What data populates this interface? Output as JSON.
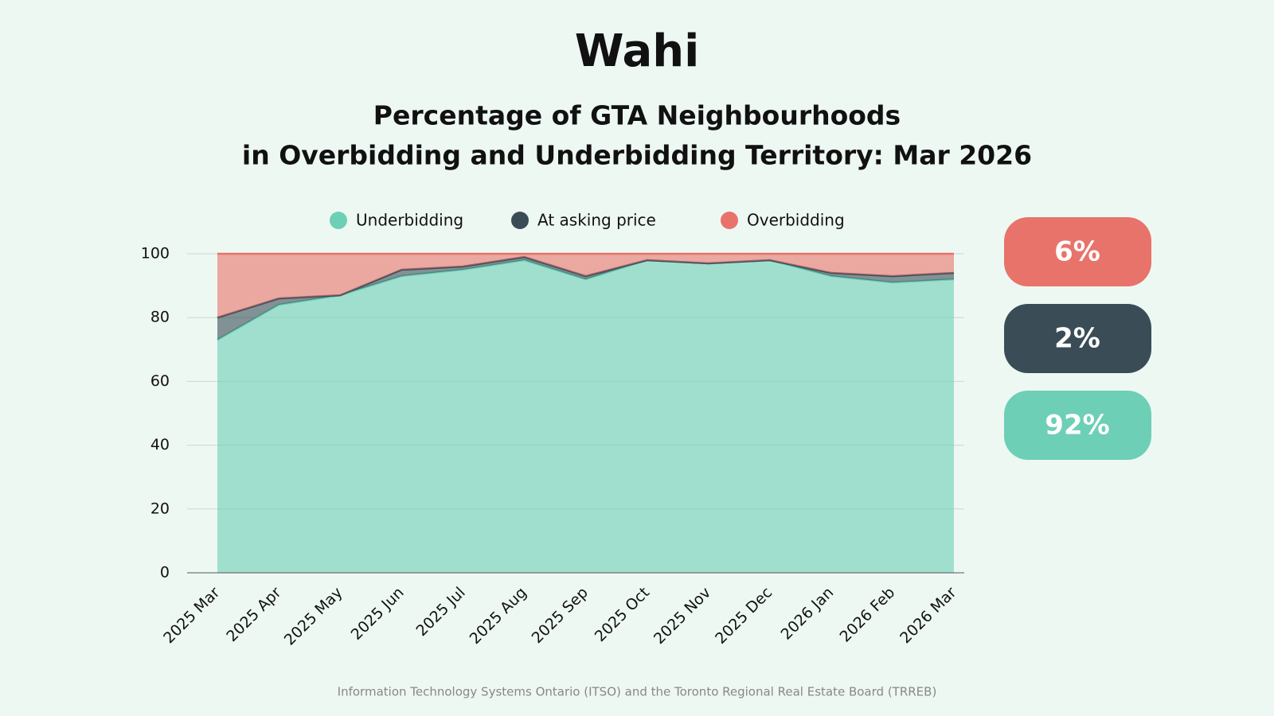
{
  "logo": "Wahi",
  "chart_data": {
    "type": "stacked_area",
    "title": [
      "Percentage of GTA Neighbourhoods",
      "in Overbidding and Underbidding Territory: Mar 2026"
    ],
    "categories": [
      "2025 Mar",
      "2025 Apr",
      "2025 May",
      "2025 Jun",
      "2025 Jul",
      "2025 Aug",
      "2025 Sep",
      "2025 Oct",
      "2025 Nov",
      "2025 Dec",
      "2026 Jan",
      "2026 Feb",
      "2026 Mar"
    ],
    "series": [
      {
        "name": "Underbidding",
        "color": "#6dcfb6",
        "values": [
          73,
          84,
          87,
          93,
          95,
          98,
          92,
          98,
          97,
          98,
          93,
          91,
          92
        ]
      },
      {
        "name": "At asking price",
        "color": "#3a4d57",
        "values": [
          7,
          2,
          0,
          2,
          1,
          1,
          1,
          0,
          0,
          0,
          1,
          2,
          2
        ]
      },
      {
        "name": "Overbidding",
        "color": "#e8736a",
        "values": [
          20,
          14,
          13,
          5,
          4,
          1,
          7,
          2,
          3,
          2,
          6,
          7,
          6
        ]
      }
    ],
    "ylim": [
      0,
      100
    ],
    "yticks": [
      0,
      20,
      40,
      60,
      80,
      100
    ],
    "grid": true,
    "callouts": [
      {
        "label": "6%",
        "color": "#e8736a"
      },
      {
        "label": "2%",
        "color": "#3a4d57"
      },
      {
        "label": "92%",
        "color": "#6dcfb6"
      }
    ],
    "source": "Information Technology Systems Ontario (ITSO) and the Toronto Regional Real Estate Board (TRREB)"
  }
}
